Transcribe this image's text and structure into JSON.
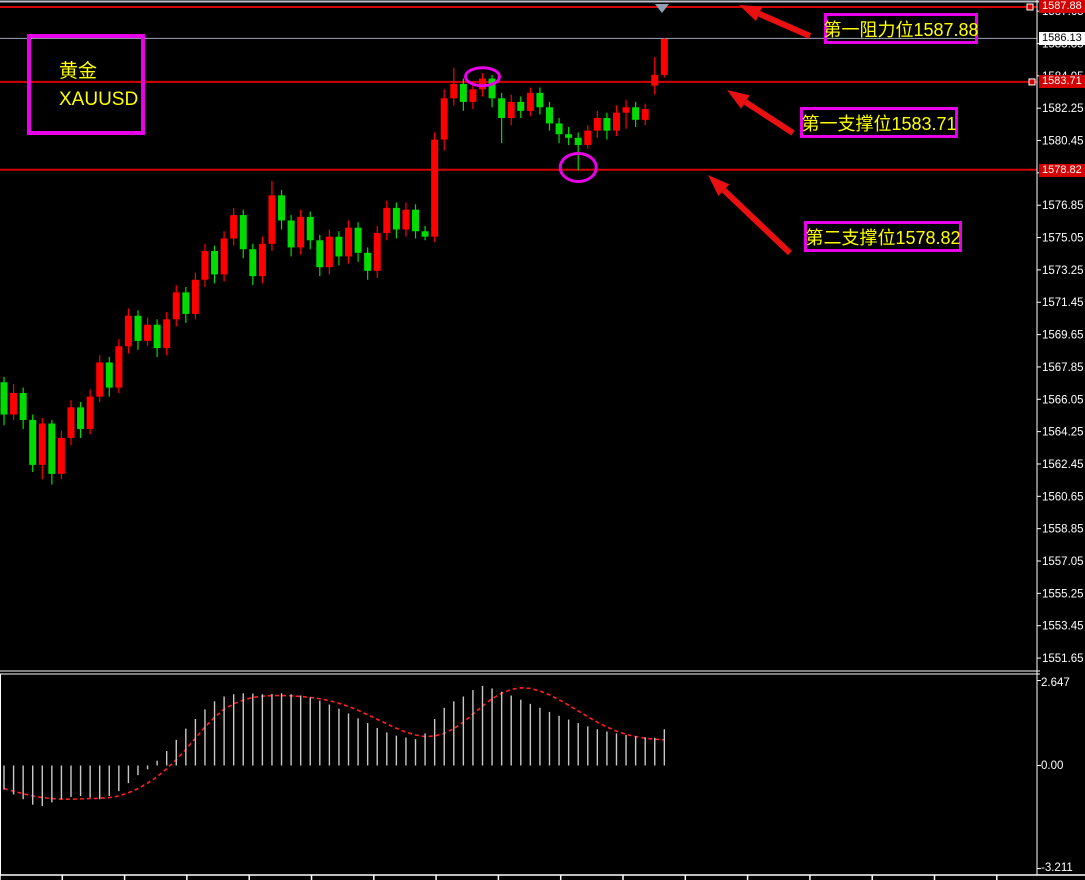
{
  "symbol_box": {
    "line1": "黄金",
    "line2": "XAUUSD"
  },
  "annotations": {
    "resistance1": {
      "label": "第一阻力位1587.88",
      "price": 1587.88
    },
    "support1": {
      "label": "第一支撑位1583.71",
      "price": 1583.71
    },
    "support2": {
      "label": "第二支撑位1578.82",
      "price": 1578.82
    }
  },
  "price_axis": {
    "current_price_tag": "1586.13",
    "resistance_tag": "1587.88",
    "support1_tag": "1583.71",
    "support2_tag": "1578.82",
    "tick_labels": [
      "1587.65",
      "1585.85",
      "1584.05",
      "1582.25",
      "1580.45",
      "1578.65",
      "1576.85",
      "1575.05",
      "1573.25",
      "1571.45",
      "1569.65",
      "1567.85",
      "1566.05",
      "1564.25",
      "1562.45",
      "1560.65",
      "1558.85",
      "1557.05",
      "1555.25",
      "1553.45",
      "1551.65"
    ],
    "tick_top_value": 1587.65,
    "tick_step": 1.8
  },
  "indicator_axis": {
    "max": "2.647",
    "zero": "0.00",
    "min": "-3.211",
    "max_value": 2.647,
    "min_value": -3.211
  },
  "colors": {
    "background": "#000000",
    "bull_candle": "#FF0000",
    "bear_candle": "#00DC00",
    "level_line": "#D40000",
    "current_price_line": "#8A94A4",
    "top_border": "#B8BEC8",
    "magenta": "#E800E8",
    "label_text": "#FFFF00",
    "macd_bar": "#C8C8C8",
    "macd_signal": "#FF2020",
    "arrow": "#E81010",
    "marker_triangle": "#8FA0B4",
    "axis_text": "#FFFFFF",
    "tag_red": "#D40000",
    "panel_frame": "#FFFFFF"
  },
  "chart_data": {
    "type": "candlestick_with_macd",
    "symbol": "XAUUSD",
    "note": "red = bullish, green = bearish (Chinese color convention)",
    "levels": {
      "resistance1": 1587.88,
      "support1": 1583.71,
      "support2": 1578.82,
      "last_price": 1586.13
    },
    "price_axis_range": [
      1551.65,
      1587.65
    ],
    "candles": [
      [
        1567.0,
        1567.3,
        1564.6,
        1565.2
      ],
      [
        1565.2,
        1566.9,
        1564.9,
        1566.4
      ],
      [
        1566.4,
        1566.7,
        1564.4,
        1564.9
      ],
      [
        1564.9,
        1565.2,
        1562.0,
        1562.4
      ],
      [
        1562.4,
        1565.0,
        1561.6,
        1564.7
      ],
      [
        1564.7,
        1564.9,
        1561.3,
        1561.9
      ],
      [
        1561.9,
        1564.3,
        1561.6,
        1563.9
      ],
      [
        1563.9,
        1566.0,
        1563.5,
        1565.6
      ],
      [
        1565.6,
        1565.9,
        1563.9,
        1564.4
      ],
      [
        1564.4,
        1566.6,
        1564.1,
        1566.2
      ],
      [
        1566.2,
        1568.5,
        1565.9,
        1568.1
      ],
      [
        1568.1,
        1568.4,
        1566.2,
        1566.7
      ],
      [
        1566.7,
        1569.4,
        1566.4,
        1569.0
      ],
      [
        1569.0,
        1571.1,
        1568.6,
        1570.7
      ],
      [
        1570.7,
        1571.0,
        1568.8,
        1569.3
      ],
      [
        1569.3,
        1570.6,
        1569.0,
        1570.2
      ],
      [
        1570.2,
        1570.5,
        1568.4,
        1568.9
      ],
      [
        1568.9,
        1570.9,
        1568.5,
        1570.5
      ],
      [
        1570.5,
        1572.4,
        1570.1,
        1572.0
      ],
      [
        1572.0,
        1572.3,
        1570.3,
        1570.8
      ],
      [
        1570.8,
        1573.1,
        1570.5,
        1572.7
      ],
      [
        1572.7,
        1574.7,
        1572.3,
        1574.3
      ],
      [
        1574.3,
        1574.6,
        1572.5,
        1573.0
      ],
      [
        1573.0,
        1575.4,
        1572.6,
        1575.0
      ],
      [
        1575.0,
        1576.7,
        1574.6,
        1576.3
      ],
      [
        1576.3,
        1576.6,
        1573.9,
        1574.4
      ],
      [
        1574.4,
        1574.7,
        1572.4,
        1572.9
      ],
      [
        1572.9,
        1575.1,
        1572.5,
        1574.7
      ],
      [
        1574.7,
        1578.2,
        1574.3,
        1577.4
      ],
      [
        1577.4,
        1577.7,
        1575.5,
        1576.0
      ],
      [
        1576.0,
        1576.3,
        1574.0,
        1574.5
      ],
      [
        1574.5,
        1576.6,
        1574.1,
        1576.2
      ],
      [
        1576.2,
        1576.5,
        1574.4,
        1574.9
      ],
      [
        1574.9,
        1575.2,
        1572.9,
        1573.4
      ],
      [
        1573.4,
        1575.5,
        1573.0,
        1575.1
      ],
      [
        1575.1,
        1575.4,
        1573.5,
        1574.0
      ],
      [
        1574.0,
        1576.0,
        1573.6,
        1575.6
      ],
      [
        1575.6,
        1575.9,
        1573.7,
        1574.2
      ],
      [
        1574.2,
        1574.5,
        1572.7,
        1573.2
      ],
      [
        1573.2,
        1575.7,
        1572.8,
        1575.3
      ],
      [
        1575.3,
        1577.1,
        1574.9,
        1576.7
      ],
      [
        1576.7,
        1577.0,
        1575.0,
        1575.5
      ],
      [
        1575.5,
        1577.0,
        1575.1,
        1576.6
      ],
      [
        1576.6,
        1576.9,
        1575.0,
        1575.4
      ],
      [
        1575.4,
        1575.7,
        1574.9,
        1575.1
      ],
      [
        1575.1,
        1580.9,
        1574.8,
        1580.5
      ],
      [
        1580.5,
        1583.3,
        1579.9,
        1582.8
      ],
      [
        1582.8,
        1584.5,
        1582.4,
        1583.6
      ],
      [
        1583.6,
        1583.9,
        1582.1,
        1582.6
      ],
      [
        1582.6,
        1583.7,
        1582.2,
        1583.3
      ],
      [
        1583.3,
        1584.2,
        1582.9,
        1583.9
      ],
      [
        1583.9,
        1584.1,
        1582.3,
        1582.8
      ],
      [
        1582.8,
        1583.1,
        1580.3,
        1581.7
      ],
      [
        1581.7,
        1583.0,
        1581.3,
        1582.6
      ],
      [
        1582.6,
        1582.9,
        1581.7,
        1582.1
      ],
      [
        1582.1,
        1583.4,
        1581.8,
        1583.1
      ],
      [
        1583.1,
        1583.4,
        1581.9,
        1582.3
      ],
      [
        1582.3,
        1582.6,
        1581.0,
        1581.4
      ],
      [
        1581.4,
        1581.7,
        1580.3,
        1580.8
      ],
      [
        1580.8,
        1581.2,
        1580.2,
        1580.6
      ],
      [
        1580.6,
        1580.9,
        1578.8,
        1580.2
      ],
      [
        1580.2,
        1581.3,
        1580.0,
        1581.0
      ],
      [
        1581.0,
        1582.1,
        1580.6,
        1581.7
      ],
      [
        1581.7,
        1582.0,
        1580.5,
        1581.0
      ],
      [
        1581.0,
        1582.4,
        1580.7,
        1582.0
      ],
      [
        1582.0,
        1582.7,
        1581.1,
        1582.3
      ],
      [
        1582.3,
        1582.6,
        1581.2,
        1581.6
      ],
      [
        1581.6,
        1582.5,
        1581.3,
        1582.2
      ],
      [
        1583.5,
        1585.1,
        1583.0,
        1584.1
      ],
      [
        1584.1,
        1586.15,
        1583.95,
        1586.1
      ]
    ],
    "circled_candle_indexes": [
      50,
      60
    ],
    "macd": {
      "ylim": [
        -3.211,
        2.647
      ],
      "histogram": [
        -0.75,
        -0.9,
        -1.05,
        -1.22,
        -1.26,
        -1.15,
        -1.05,
        -0.98,
        -0.95,
        -1.0,
        -1.05,
        -0.95,
        -0.8,
        -0.55,
        -0.3,
        -0.12,
        0.15,
        0.45,
        0.8,
        1.15,
        1.45,
        1.75,
        2.0,
        2.15,
        2.22,
        2.25,
        2.24,
        2.22,
        2.23,
        2.25,
        2.22,
        2.18,
        2.12,
        2.02,
        1.9,
        1.77,
        1.62,
        1.47,
        1.32,
        1.17,
        1.03,
        0.93,
        0.87,
        0.82,
        1.0,
        1.45,
        1.8,
        2.0,
        2.15,
        2.35,
        2.48,
        2.4,
        2.3,
        2.18,
        2.05,
        1.92,
        1.8,
        1.67,
        1.55,
        1.43,
        1.32,
        1.22,
        1.13,
        1.06,
        1.0,
        0.95,
        0.91,
        0.88,
        0.86,
        1.13
      ],
      "signal": [
        -0.72,
        -0.8,
        -0.88,
        -0.95,
        -1.0,
        -1.03,
        -1.05,
        -1.05,
        -1.04,
        -1.03,
        -1.02,
        -1.0,
        -0.95,
        -0.85,
        -0.72,
        -0.55,
        -0.35,
        -0.1,
        0.18,
        0.5,
        0.85,
        1.2,
        1.5,
        1.75,
        1.92,
        2.04,
        2.12,
        2.16,
        2.18,
        2.18,
        2.17,
        2.15,
        2.12,
        2.08,
        2.02,
        1.94,
        1.84,
        1.72,
        1.58,
        1.44,
        1.3,
        1.16,
        1.04,
        0.95,
        0.9,
        0.92,
        1.0,
        1.15,
        1.35,
        1.6,
        1.85,
        2.08,
        2.25,
        2.37,
        2.42,
        2.4,
        2.32,
        2.2,
        2.05,
        1.88,
        1.7,
        1.52,
        1.35,
        1.2,
        1.07,
        0.97,
        0.9,
        0.85,
        0.82,
        0.8
      ]
    },
    "arrows": [
      {
        "tip": [
          739,
          5
        ],
        "tail": [
          810,
          36
        ]
      },
      {
        "tip": [
          727,
          90
        ],
        "tail": [
          793,
          133
        ]
      },
      {
        "tip": [
          708,
          175
        ],
        "tail": [
          790,
          253
        ]
      }
    ],
    "time_axis": {
      "tick_spacing_px": 62.3,
      "labels_visible": false
    }
  }
}
